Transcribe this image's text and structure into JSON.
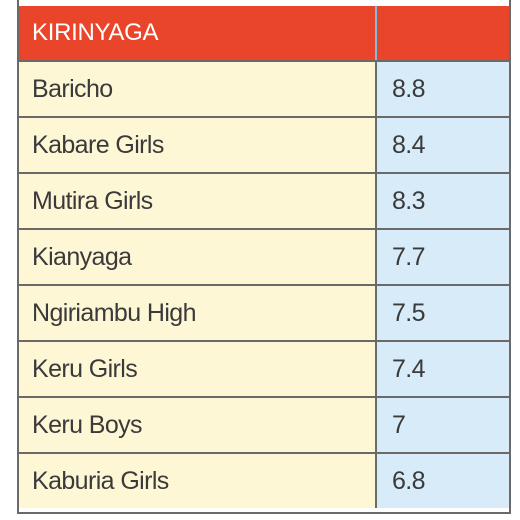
{
  "table": {
    "header": {
      "region": "KIRINYAGA",
      "value": ""
    },
    "rows": [
      {
        "school": "Baricho",
        "score": "8.8"
      },
      {
        "school": "Kabare Girls",
        "score": "8.4"
      },
      {
        "school": "Mutira Girls",
        "score": "8.3"
      },
      {
        "school": "Kianyaga",
        "score": "7.7"
      },
      {
        "school": "Ngiriambu High",
        "score": "7.5"
      },
      {
        "school": "Keru Girls",
        "score": "7.4"
      },
      {
        "school": "Keru Boys",
        "score": "7"
      },
      {
        "school": "Kaburia Girls",
        "score": "6.8"
      }
    ]
  },
  "colors": {
    "header_bg": "#e8452a",
    "name_column_bg": "#fdf7d6",
    "value_column_bg": "#d7ecf8",
    "text": "#3b3a3a"
  }
}
